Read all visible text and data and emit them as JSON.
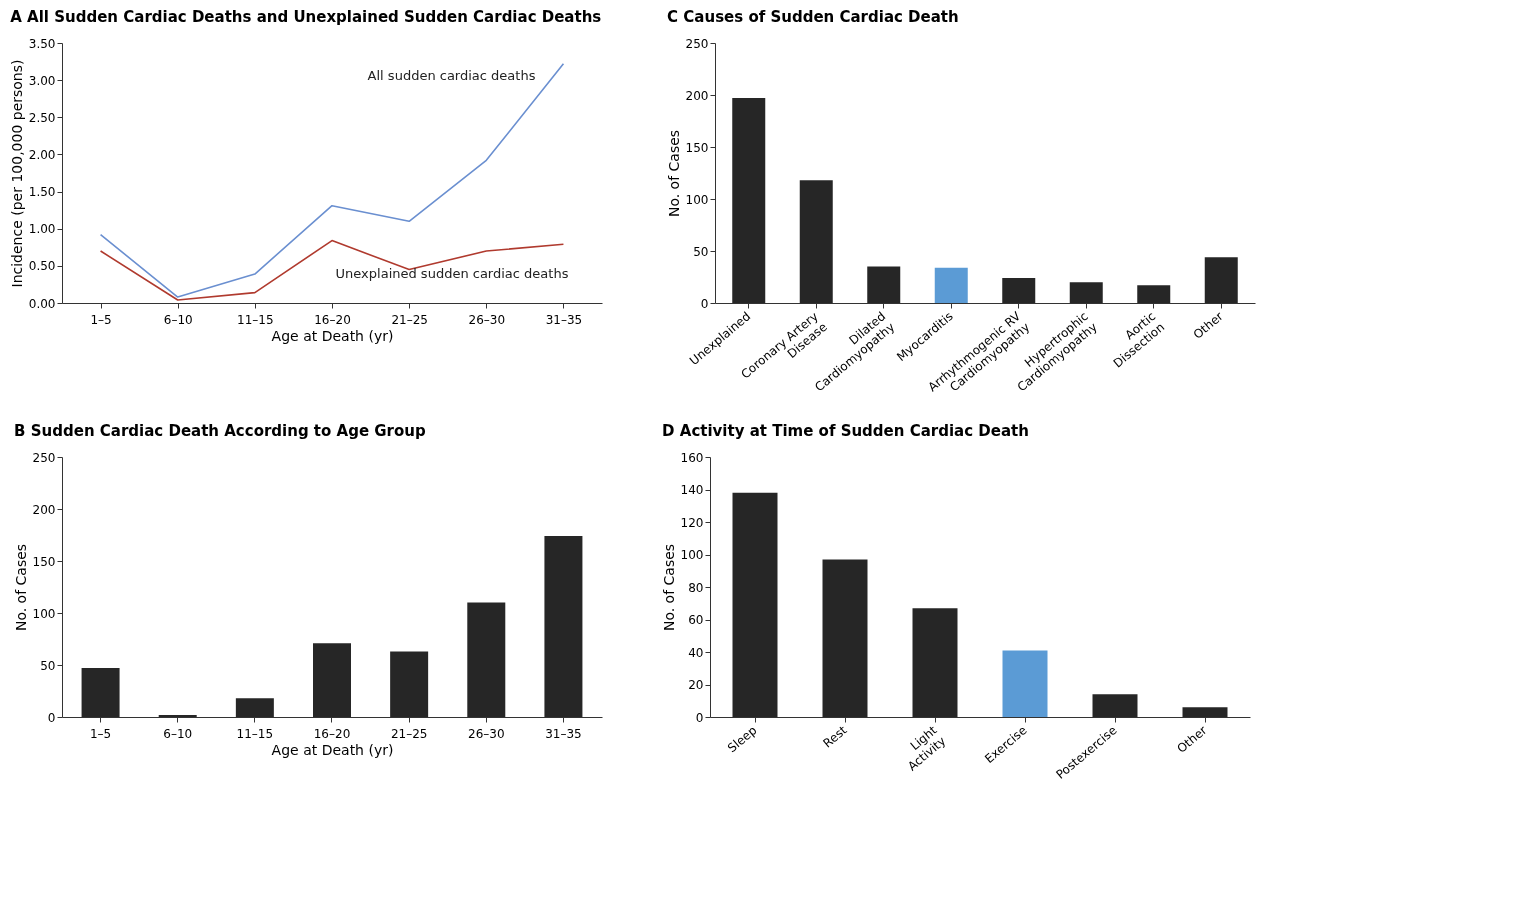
{
  "chart_data": [
    {
      "type": "line",
      "title": "A  All Sudden Cardiac Deaths and Unexplained Sudden Cardiac Deaths",
      "xlabel": "Age at Death (yr)",
      "ylabel": "Incidence (per 100,000 persons)",
      "categories": [
        "1–5",
        "6–10",
        "11–15",
        "16–20",
        "21–25",
        "26–30",
        "31–35"
      ],
      "series": [
        {
          "name": "All sudden cardiac deaths",
          "color": "#6a8fd0",
          "values": [
            0.92,
            0.08,
            0.39,
            1.31,
            1.1,
            1.92,
            3.22
          ]
        },
        {
          "name": "Unexplained sudden cardiac deaths",
          "color": "#b03a2e",
          "values": [
            0.7,
            0.04,
            0.14,
            0.84,
            0.45,
            0.7,
            0.79
          ]
        }
      ],
      "ylim": [
        0,
        3.5
      ],
      "yticks": [
        {
          "value": 0,
          "label": "0.00"
        },
        {
          "value": 0.5,
          "label": "0.50"
        },
        {
          "value": 1,
          "label": "1.00"
        },
        {
          "value": 1.5,
          "label": "1.50"
        },
        {
          "value": 2,
          "label": "2.00"
        },
        {
          "value": 2.5,
          "label": "2.50"
        },
        {
          "value": 3,
          "label": "3.00"
        },
        {
          "value": 3.5,
          "label": "3.50"
        }
      ],
      "grid": false,
      "marker": "none",
      "line_style": "solid"
    },
    {
      "type": "bar",
      "title": "C  Causes of Sudden Cardiac Death",
      "ylabel": "No. of Cases",
      "categories": [
        "Unexplained",
        "Coronary Artery\nDisease",
        "Dilated\nCardiomyopathy",
        "Myocarditis",
        "Arrhythmogenic RV\nCardiomyopathy",
        "Hypertrophic\nCardiomyopathy",
        "Aortic\nDissection",
        "Other"
      ],
      "values": [
        197,
        118,
        35,
        34,
        24,
        20,
        17,
        44
      ],
      "colors": [
        "#262626",
        "#262626",
        "#262626",
        "#5b9bd5",
        "#262626",
        "#262626",
        "#262626",
        "#262626"
      ],
      "ylim": [
        0,
        250
      ],
      "yticks": [
        0,
        50,
        100,
        150,
        200,
        250
      ],
      "grid": false
    },
    {
      "type": "bar",
      "title": "B  Sudden Cardiac Death According to Age Group",
      "xlabel": "Age at Death (yr)",
      "ylabel": "No. of Cases",
      "categories": [
        "1–5",
        "6–10",
        "11–15",
        "16–20",
        "21–25",
        "26–30",
        "31–35"
      ],
      "values": [
        47,
        2,
        18,
        71,
        63,
        110,
        174
      ],
      "colors": [
        "#262626",
        "#262626",
        "#262626",
        "#262626",
        "#262626",
        "#262626",
        "#262626"
      ],
      "ylim": [
        0,
        250
      ],
      "yticks": [
        0,
        50,
        100,
        150,
        200,
        250
      ],
      "grid": false
    },
    {
      "type": "bar",
      "title": "D  Activity at Time of Sudden Cardiac Death",
      "ylabel": "No. of Cases",
      "categories": [
        "Sleep",
        "Rest",
        "Light\nActivity",
        "Exercise",
        "Postexercise",
        "Other"
      ],
      "values": [
        138,
        97,
        67,
        41,
        14,
        6
      ],
      "colors": [
        "#262626",
        "#262626",
        "#262626",
        "#5b9bd5",
        "#262626",
        "#262626"
      ],
      "ylim": [
        0,
        160
      ],
      "yticks": [
        0,
        20,
        40,
        60,
        80,
        100,
        120,
        140,
        160
      ],
      "grid": false
    }
  ]
}
